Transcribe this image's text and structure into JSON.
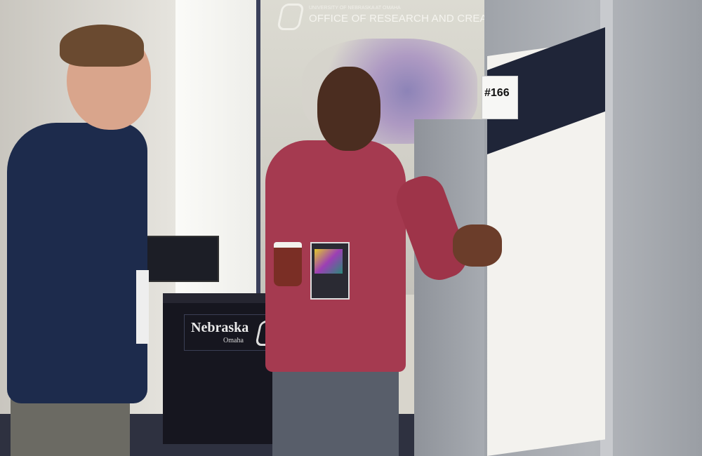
{
  "scene": {
    "description_tags": [
      "poster-session",
      "two-men",
      "conversation"
    ],
    "projection": {
      "subtitle": "UNIVERSITY OF NEBRASKA AT OMAHA",
      "title": "OFFICE OF RESEARCH AND CREATIVE ACTIVITY"
    },
    "podium": {
      "name": "Nebraska",
      "subname": "Omaha"
    },
    "poster_tag": "#166",
    "colors": {
      "sweater": "#1d2b4c",
      "shirt": "#a53a50",
      "panel": "#a8acb2",
      "podium": "#16161f"
    }
  }
}
